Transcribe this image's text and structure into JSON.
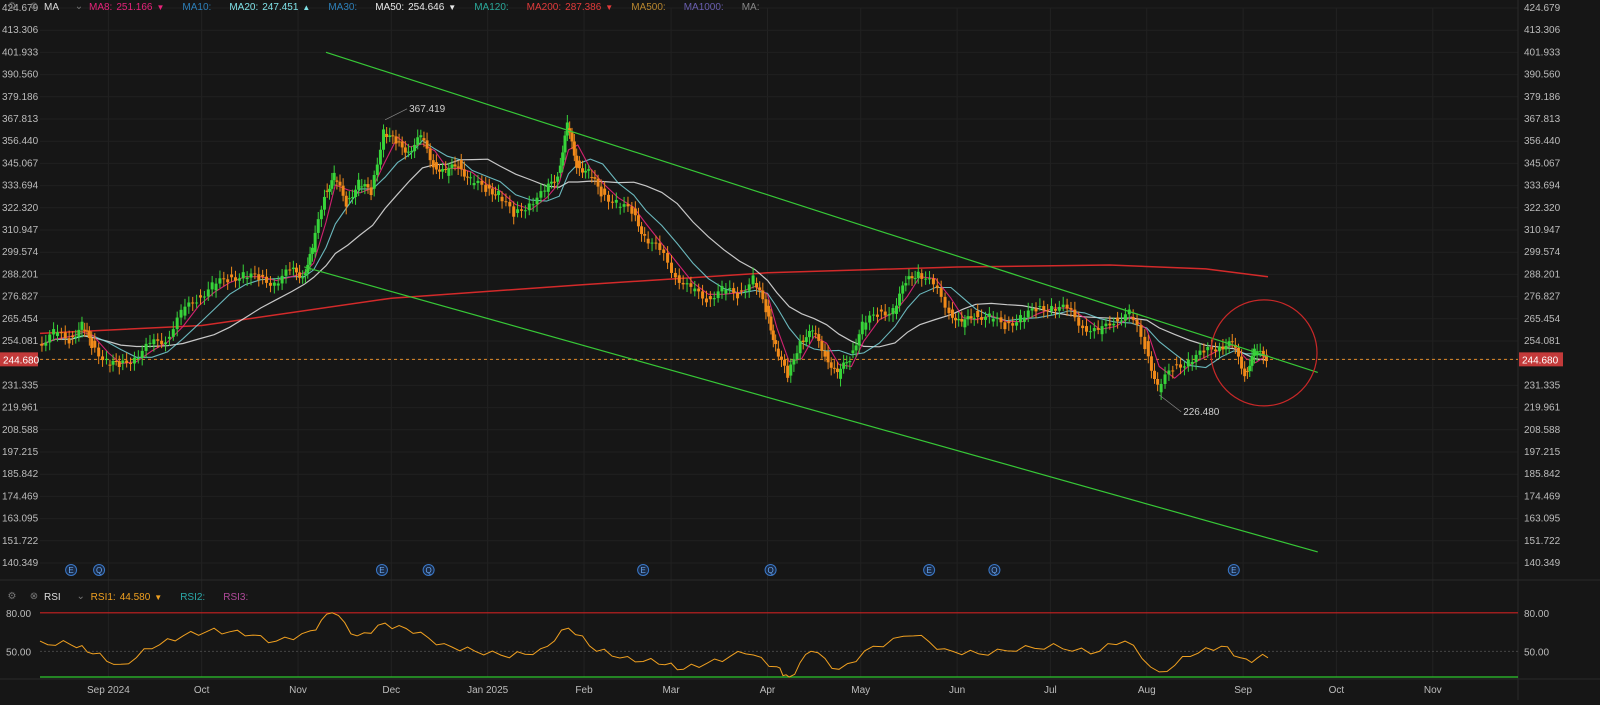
{
  "toolbar": {
    "main_indicator": "MA",
    "ma": [
      {
        "label": "MA8:",
        "value": "251.166",
        "color": "#e6237a",
        "arrow": "▼"
      },
      {
        "label": "MA10:",
        "value": "",
        "color": "#2d7fb8",
        "arrow": ""
      },
      {
        "label": "MA20:",
        "value": "247.451",
        "color": "#7fe0e6",
        "arrow": "▲"
      },
      {
        "label": "MA30:",
        "value": "",
        "color": "#2d7fb8",
        "arrow": ""
      },
      {
        "label": "MA50:",
        "value": "254.646",
        "color": "#e8e8e8",
        "arrow": "▼"
      },
      {
        "label": "MA120:",
        "value": "",
        "color": "#2aa89a",
        "arrow": ""
      },
      {
        "label": "MA200:",
        "value": "287.386",
        "color": "#e23b3b",
        "arrow": "▼"
      },
      {
        "label": "MA500:",
        "value": "",
        "color": "#b8862e",
        "arrow": ""
      },
      {
        "label": "MA1000:",
        "value": "",
        "color": "#6a5fb0",
        "arrow": ""
      },
      {
        "label": "MA:",
        "value": "",
        "color": "#888888",
        "arrow": ""
      }
    ],
    "rsi_indicator": "RSI",
    "rsi": [
      {
        "label": "RSI1:",
        "value": "44.580",
        "color": "#f0a020",
        "arrow": "▼"
      },
      {
        "label": "RSI2:",
        "value": "",
        "color": "#2aa8a8",
        "arrow": ""
      },
      {
        "label": "RSI3:",
        "value": "",
        "color": "#b04a9a",
        "arrow": ""
      }
    ]
  },
  "chart_data": {
    "type": "line",
    "price_ticks": [
      "424.679",
      "413.306",
      "401.933",
      "390.560",
      "379.186",
      "367.813",
      "356.440",
      "345.067",
      "333.694",
      "322.320",
      "310.947",
      "299.574",
      "288.201",
      "276.827",
      "265.454",
      "254.081",
      "244.680",
      "231.335",
      "219.961",
      "208.588",
      "197.215",
      "185.842",
      "174.469",
      "163.095",
      "151.722",
      "140.349"
    ],
    "price_range": [
      140.349,
      424.679
    ],
    "current_price": "244.680",
    "rsi_ticks": [
      "80.00",
      "50.00"
    ],
    "rsi_range": [
      30,
      90
    ],
    "x_labels": [
      "Sep 2024",
      "Oct",
      "Nov",
      "Dec",
      "Jan 2025",
      "Feb",
      "Mar",
      "Apr",
      "May",
      "Jun",
      "Jul",
      "Aug",
      "Sep",
      "Oct",
      "Nov"
    ],
    "annotations": [
      {
        "text": "367.419",
        "value": 367.419,
        "date": "2024-11-29"
      },
      {
        "text": "226.480",
        "value": 226.48,
        "date": "2025-08-05"
      }
    ],
    "event_markers": [
      {
        "date": "2024-08-20",
        "mark": "E"
      },
      {
        "date": "2024-08-29",
        "mark": "Q"
      },
      {
        "date": "2024-11-28",
        "mark": "E"
      },
      {
        "date": "2024-12-13",
        "mark": "Q"
      },
      {
        "date": "2025-02-20",
        "mark": "E"
      },
      {
        "date": "2025-04-02",
        "mark": "Q"
      },
      {
        "date": "2025-05-23",
        "mark": "E"
      },
      {
        "date": "2025-06-13",
        "mark": "Q"
      },
      {
        "date": "2025-08-29",
        "mark": "E"
      }
    ],
    "close_series": [
      [
        "2024-08-10",
        252
      ],
      [
        "2024-08-15",
        258
      ],
      [
        "2024-08-20",
        255
      ],
      [
        "2024-08-24",
        262
      ],
      [
        "2024-08-27",
        252
      ],
      [
        "2024-09-01",
        244
      ],
      [
        "2024-09-05",
        241
      ],
      [
        "2024-09-10",
        246
      ],
      [
        "2024-09-15",
        252
      ],
      [
        "2024-09-20",
        255
      ],
      [
        "2024-09-25",
        268
      ],
      [
        "2024-09-30",
        276
      ],
      [
        "2024-10-05",
        282
      ],
      [
        "2024-10-10",
        286
      ],
      [
        "2024-10-15",
        288
      ],
      [
        "2024-10-20",
        286
      ],
      [
        "2024-10-25",
        284
      ],
      [
        "2024-10-30",
        290
      ],
      [
        "2024-11-03",
        288
      ],
      [
        "2024-11-06",
        300
      ],
      [
        "2024-11-10",
        330
      ],
      [
        "2024-11-13",
        338
      ],
      [
        "2024-11-17",
        325
      ],
      [
        "2024-11-21",
        335
      ],
      [
        "2024-11-25",
        330
      ],
      [
        "2024-11-29",
        362
      ],
      [
        "2024-12-03",
        355
      ],
      [
        "2024-12-07",
        352
      ],
      [
        "2024-12-11",
        358
      ],
      [
        "2024-12-15",
        345
      ],
      [
        "2024-12-19",
        340
      ],
      [
        "2024-12-23",
        345
      ],
      [
        "2024-12-27",
        336
      ],
      [
        "2025-01-01",
        332
      ],
      [
        "2025-01-05",
        330
      ],
      [
        "2025-01-10",
        318
      ],
      [
        "2025-01-15",
        325
      ],
      [
        "2025-01-20",
        330
      ],
      [
        "2025-01-24",
        340
      ],
      [
        "2025-01-27",
        364
      ],
      [
        "2025-01-30",
        345
      ],
      [
        "2025-02-03",
        340
      ],
      [
        "2025-02-07",
        330
      ],
      [
        "2025-02-12",
        325
      ],
      [
        "2025-02-17",
        320
      ],
      [
        "2025-02-21",
        308
      ],
      [
        "2025-02-26",
        300
      ],
      [
        "2025-03-03",
        288
      ],
      [
        "2025-03-08",
        280
      ],
      [
        "2025-03-13",
        276
      ],
      [
        "2025-03-18",
        280
      ],
      [
        "2025-03-23",
        278
      ],
      [
        "2025-03-28",
        286
      ],
      [
        "2025-04-01",
        270
      ],
      [
        "2025-04-04",
        252
      ],
      [
        "2025-04-08",
        235
      ],
      [
        "2025-04-12",
        255
      ],
      [
        "2025-04-16",
        258
      ],
      [
        "2025-04-20",
        248
      ],
      [
        "2025-04-24",
        236
      ],
      [
        "2025-04-28",
        246
      ],
      [
        "2025-05-02",
        262
      ],
      [
        "2025-05-07",
        268
      ],
      [
        "2025-05-12",
        270
      ],
      [
        "2025-05-16",
        284
      ],
      [
        "2025-05-20",
        290
      ],
      [
        "2025-05-25",
        282
      ],
      [
        "2025-05-30",
        270
      ],
      [
        "2025-06-03",
        262
      ],
      [
        "2025-06-07",
        268
      ],
      [
        "2025-06-12",
        266
      ],
      [
        "2025-06-17",
        262
      ],
      [
        "2025-06-22",
        266
      ],
      [
        "2025-06-27",
        270
      ],
      [
        "2025-07-02",
        272
      ],
      [
        "2025-07-07",
        270
      ],
      [
        "2025-07-12",
        262
      ],
      [
        "2025-07-17",
        258
      ],
      [
        "2025-07-22",
        265
      ],
      [
        "2025-07-27",
        268
      ],
      [
        "2025-08-01",
        252
      ],
      [
        "2025-08-05",
        230
      ],
      [
        "2025-08-10",
        240
      ],
      [
        "2025-08-15",
        244
      ],
      [
        "2025-08-20",
        248
      ],
      [
        "2025-08-25",
        252
      ],
      [
        "2025-08-29",
        252
      ],
      [
        "2025-09-02",
        238
      ],
      [
        "2025-09-05",
        248
      ],
      [
        "2025-09-09",
        246
      ]
    ],
    "rsi_series": [
      [
        "2024-08-10",
        58
      ],
      [
        "2024-08-20",
        55
      ],
      [
        "2024-08-27",
        48
      ],
      [
        "2024-09-05",
        40
      ],
      [
        "2024-09-15",
        52
      ],
      [
        "2024-09-25",
        62
      ],
      [
        "2024-10-05",
        68
      ],
      [
        "2024-10-15",
        62
      ],
      [
        "2024-10-25",
        58
      ],
      [
        "2024-11-05",
        66
      ],
      [
        "2024-11-12",
        80
      ],
      [
        "2024-11-20",
        62
      ],
      [
        "2024-11-29",
        72
      ],
      [
        "2024-12-08",
        64
      ],
      [
        "2024-12-18",
        56
      ],
      [
        "2024-12-28",
        50
      ],
      [
        "2025-01-08",
        45
      ],
      [
        "2025-01-18",
        52
      ],
      [
        "2025-01-27",
        68
      ],
      [
        "2025-02-05",
        50
      ],
      [
        "2025-02-15",
        46
      ],
      [
        "2025-02-25",
        40
      ],
      [
        "2025-03-05",
        36
      ],
      [
        "2025-03-15",
        44
      ],
      [
        "2025-03-25",
        48
      ],
      [
        "2025-04-04",
        38
      ],
      [
        "2025-04-08",
        30
      ],
      [
        "2025-04-15",
        50
      ],
      [
        "2025-04-24",
        36
      ],
      [
        "2025-05-05",
        54
      ],
      [
        "2025-05-18",
        62
      ],
      [
        "2025-05-28",
        52
      ],
      [
        "2025-06-08",
        48
      ],
      [
        "2025-06-20",
        50
      ],
      [
        "2025-07-02",
        56
      ],
      [
        "2025-07-14",
        48
      ],
      [
        "2025-07-25",
        58
      ],
      [
        "2025-08-05",
        34
      ],
      [
        "2025-08-15",
        46
      ],
      [
        "2025-08-25",
        54
      ],
      [
        "2025-09-02",
        44
      ],
      [
        "2025-09-09",
        45
      ]
    ],
    "trendlines": [
      {
        "from": [
          "2024-11-10",
          402
        ],
        "to": [
          "2025-09-25",
          238
        ]
      },
      {
        "from": [
          "2024-11-03",
          292
        ],
        "to": [
          "2025-09-25",
          146
        ]
      }
    ]
  }
}
